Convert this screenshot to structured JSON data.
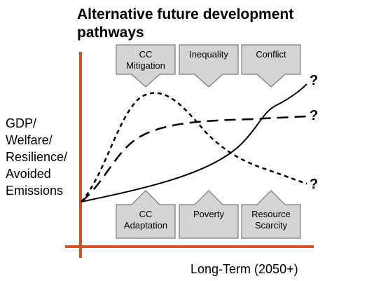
{
  "title": "Alternative future development pathways",
  "y_axis_label": [
    "GDP/",
    "Welfare/",
    "Resilience/",
    "Avoided",
    "Emissions"
  ],
  "x_axis_label": "Long-Term (2050+)",
  "top_pressures": [
    {
      "line1": "CC",
      "line2": "Mitigation"
    },
    {
      "line1": "Inequality",
      "line2": ""
    },
    {
      "line1": "Conflict",
      "line2": ""
    }
  ],
  "bottom_pressures": [
    {
      "line1": "CC",
      "line2": "Adaptation"
    },
    {
      "line1": "Poverty",
      "line2": ""
    },
    {
      "line1": "Resource",
      "line2": "Scarcity"
    }
  ],
  "outcome_marks": [
    "?",
    "?",
    "?"
  ],
  "colors": {
    "axis": "#d2502a",
    "box_fill": "#d4d4d4",
    "box_stroke": "#7a7a7a",
    "curve": "#000000"
  }
}
